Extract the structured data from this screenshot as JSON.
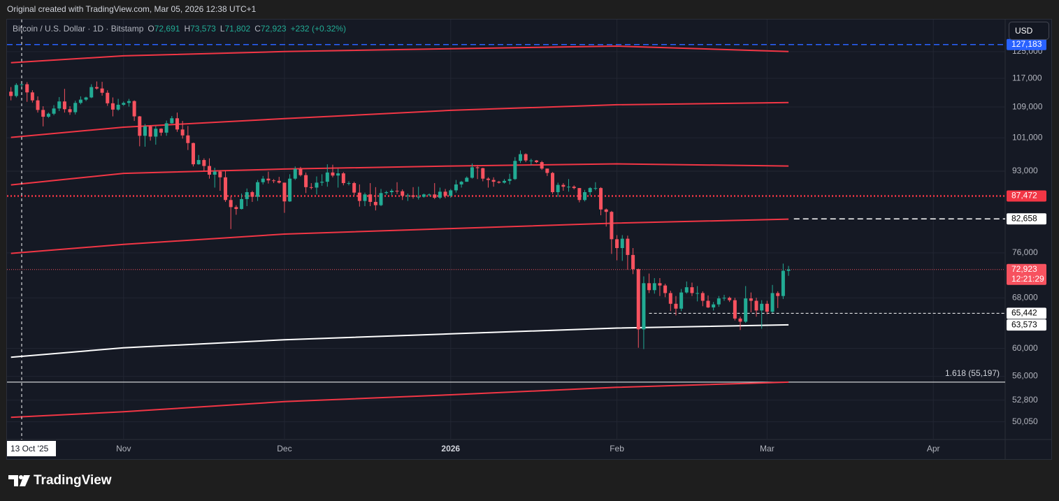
{
  "attribution": "Original created with TradingView.com, Mar 05, 2026 12:38 UTC+1",
  "currency_button": "USD",
  "brand": "TradingView",
  "chart_data": {
    "type": "candlestick",
    "legend": {
      "symbol": "Bitcoin / U.S. Dollar · 1D · Bitstamp",
      "open_label": "O",
      "open": "72,691",
      "high_label": "H",
      "high": "73,573",
      "low_label": "L",
      "low": "71,802",
      "close_label": "C",
      "close": "72,923",
      "change": "+232 (+0.32%)"
    },
    "log_scale": true,
    "grid": true,
    "up_color": "#22ab94",
    "down_color": "#f7525f",
    "ylim": [
      47900,
      135300
    ],
    "yticks": [
      {
        "value": 125000,
        "label": "125,000"
      },
      {
        "value": 117000,
        "label": "117,000"
      },
      {
        "value": 109000,
        "label": "109,000"
      },
      {
        "value": 101000,
        "label": "101,000"
      },
      {
        "value": 93000,
        "label": "93,000"
      },
      {
        "value": 76000,
        "label": "76,000"
      },
      {
        "value": 68000,
        "label": "68,000"
      },
      {
        "value": 60000,
        "label": "60,000"
      },
      {
        "value": 56000,
        "label": "56,000"
      },
      {
        "value": 52800,
        "label": "52,800"
      },
      {
        "value": 50050,
        "label": "50,050"
      }
    ],
    "xlim": [
      -0.74,
      185.4
    ],
    "xticks": [
      {
        "value": 21,
        "label": "Nov"
      },
      {
        "value": 51,
        "label": "Dec"
      },
      {
        "value": 82,
        "label": "2026"
      },
      {
        "value": 113,
        "label": "Feb"
      },
      {
        "value": 141,
        "label": "Mar"
      },
      {
        "value": 172,
        "label": "Apr"
      }
    ],
    "crosshair": {
      "x": 2,
      "label": "13 Oct '25"
    },
    "candles": [
      [
        113200,
        114500,
        110800,
        112000
      ],
      [
        112000,
        115600,
        111600,
        115100
      ],
      [
        115100,
        116000,
        113800,
        115300
      ],
      [
        115300,
        115900,
        110400,
        113000
      ],
      [
        113000,
        113600,
        110200,
        110800
      ],
      [
        110800,
        111900,
        107500,
        108200
      ],
      [
        108200,
        109200,
        103900,
        106400
      ],
      [
        106400,
        107500,
        106100,
        107200
      ],
      [
        107200,
        109500,
        106800,
        108600
      ],
      [
        108600,
        111700,
        107900,
        110500
      ],
      [
        110500,
        114000,
        107500,
        108400
      ],
      [
        108400,
        109200,
        106900,
        107600
      ],
      [
        107600,
        110700,
        107000,
        110100
      ],
      [
        110100,
        111900,
        109700,
        111000
      ],
      [
        111000,
        111800,
        110600,
        111600
      ],
      [
        111600,
        115300,
        111400,
        114500
      ],
      [
        114500,
        116100,
        113800,
        114100
      ],
      [
        114100,
        116000,
        112100,
        112900
      ],
      [
        112900,
        113600,
        109300,
        110000
      ],
      [
        110000,
        111600,
        106500,
        108300
      ],
      [
        108300,
        111200,
        108000,
        109600
      ],
      [
        109600,
        110500,
        109300,
        110100
      ],
      [
        110100,
        111200,
        109100,
        110600
      ],
      [
        110600,
        110800,
        105300,
        106500
      ],
      [
        106500,
        106600,
        98900,
        101500
      ],
      [
        101500,
        104500,
        98800,
        103900
      ],
      [
        103900,
        104200,
        100300,
        101300
      ],
      [
        101300,
        104000,
        99300,
        103300
      ],
      [
        103300,
        103400,
        101500,
        102300
      ],
      [
        102300,
        105400,
        101500,
        104700
      ],
      [
        104700,
        106600,
        104600,
        106000
      ],
      [
        106000,
        107500,
        102500,
        103100
      ],
      [
        103100,
        105300,
        100800,
        101600
      ],
      [
        101600,
        104000,
        98000,
        99700
      ],
      [
        99700,
        99800,
        94100,
        94600
      ],
      [
        94600,
        96800,
        94500,
        95600
      ],
      [
        95600,
        96000,
        93100,
        94200
      ],
      [
        94200,
        96000,
        91300,
        92200
      ],
      [
        92200,
        93800,
        89300,
        92900
      ],
      [
        92900,
        93200,
        88600,
        91600
      ],
      [
        91600,
        93100,
        86200,
        86600
      ],
      [
        86600,
        87400,
        80600,
        85100
      ],
      [
        85100,
        85500,
        83500,
        84700
      ],
      [
        84700,
        88000,
        84600,
        86800
      ],
      [
        86800,
        89100,
        85300,
        88300
      ],
      [
        88300,
        88600,
        86200,
        87300
      ],
      [
        87300,
        91000,
        86400,
        90500
      ],
      [
        90500,
        91900,
        90000,
        91300
      ],
      [
        91300,
        92900,
        90200,
        90900
      ],
      [
        90900,
        91200,
        90300,
        90800
      ],
      [
        90800,
        91700,
        90200,
        90400
      ],
      [
        90400,
        90400,
        83900,
        86300
      ],
      [
        86300,
        92300,
        86200,
        91300
      ],
      [
        91300,
        94100,
        91000,
        93500
      ],
      [
        93500,
        94000,
        91800,
        92100
      ],
      [
        92100,
        92700,
        88100,
        89400
      ],
      [
        89400,
        90300,
        88900,
        89300
      ],
      [
        89300,
        91800,
        87800,
        90400
      ],
      [
        90400,
        92300,
        89700,
        90600
      ],
      [
        90600,
        94600,
        89500,
        92700
      ],
      [
        92700,
        94500,
        91600,
        92000
      ],
      [
        92000,
        93600,
        89300,
        92500
      ],
      [
        92500,
        92800,
        89800,
        90300
      ],
      [
        90300,
        90700,
        89800,
        90300
      ],
      [
        90300,
        90600,
        87600,
        88200
      ],
      [
        88200,
        90000,
        85200,
        86400
      ],
      [
        86400,
        88200,
        85300,
        87800
      ],
      [
        87800,
        90300,
        85300,
        86200
      ],
      [
        86200,
        89400,
        84400,
        85500
      ],
      [
        85500,
        89000,
        85300,
        88100
      ],
      [
        88100,
        88600,
        87700,
        88300
      ],
      [
        88300,
        89000,
        87600,
        88600
      ],
      [
        88600,
        90500,
        87900,
        88500
      ],
      [
        88500,
        88900,
        86600,
        87500
      ],
      [
        87500,
        88000,
        86400,
        87600
      ],
      [
        87600,
        89400,
        86900,
        87300
      ],
      [
        87300,
        89500,
        86700,
        87300
      ],
      [
        87300,
        88000,
        87100,
        87800
      ],
      [
        87800,
        88000,
        87400,
        87800
      ],
      [
        87800,
        90300,
        86800,
        87100
      ],
      [
        87100,
        89300,
        86800,
        88400
      ],
      [
        88400,
        89000,
        87000,
        87500
      ],
      [
        87500,
        89000,
        87100,
        88700
      ],
      [
        88700,
        91000,
        88200,
        90000
      ],
      [
        90000,
        90800,
        89300,
        90600
      ],
      [
        90600,
        91800,
        90600,
        91500
      ],
      [
        91500,
        94800,
        91300,
        93900
      ],
      [
        93900,
        94400,
        91200,
        93700
      ],
      [
        93700,
        93800,
        90700,
        91300
      ],
      [
        91300,
        91600,
        89300,
        91000
      ],
      [
        91000,
        91600,
        89500,
        90600
      ],
      [
        90600,
        90800,
        90200,
        90400
      ],
      [
        90400,
        91200,
        90200,
        90800
      ],
      [
        90800,
        92400,
        90000,
        91200
      ],
      [
        91200,
        96300,
        91000,
        95400
      ],
      [
        95400,
        97900,
        94900,
        97000
      ],
      [
        97000,
        97200,
        95100,
        95500
      ],
      [
        95500,
        95900,
        94400,
        95500
      ],
      [
        95500,
        95600,
        94900,
        95100
      ],
      [
        95100,
        95400,
        93300,
        93600
      ],
      [
        93600,
        93600,
        91900,
        92600
      ],
      [
        92600,
        92800,
        87900,
        88300
      ],
      [
        88300,
        90400,
        87300,
        89900
      ],
      [
        89900,
        90300,
        88600,
        89500
      ],
      [
        89500,
        91200,
        88400,
        89500
      ],
      [
        89500,
        89800,
        88900,
        89200
      ],
      [
        89200,
        89200,
        86100,
        86600
      ],
      [
        86600,
        88800,
        86300,
        88300
      ],
      [
        88300,
        89400,
        87600,
        89200
      ],
      [
        89200,
        90500,
        88700,
        89200
      ],
      [
        89200,
        89400,
        83400,
        84600
      ],
      [
        84600,
        84800,
        81100,
        84100
      ],
      [
        84100,
        84300,
        75800,
        78600
      ],
      [
        78600,
        79400,
        74600,
        76900
      ],
      [
        76900,
        79400,
        74500,
        78700
      ],
      [
        78700,
        79300,
        72900,
        75600
      ],
      [
        75600,
        76900,
        72100,
        73000
      ],
      [
        73000,
        73100,
        60100,
        62900
      ],
      [
        62900,
        71700,
        59900,
        70500
      ],
      [
        70500,
        72200,
        68800,
        69300
      ],
      [
        69300,
        71400,
        68700,
        70500
      ],
      [
        70500,
        71400,
        68300,
        70100
      ],
      [
        70100,
        70400,
        68100,
        68800
      ],
      [
        68800,
        69200,
        65800,
        67000
      ],
      [
        67000,
        68300,
        65100,
        66200
      ],
      [
        66200,
        69500,
        65800,
        68900
      ],
      [
        68900,
        70800,
        68700,
        69800
      ],
      [
        69800,
        70600,
        68300,
        68800
      ],
      [
        68800,
        70000,
        67400,
        68800
      ],
      [
        68800,
        69100,
        66600,
        67500
      ],
      [
        67500,
        68400,
        66300,
        66400
      ],
      [
        66400,
        67300,
        65900,
        66900
      ],
      [
        66900,
        68300,
        66500,
        67900
      ],
      [
        67900,
        68500,
        67500,
        68000
      ],
      [
        68000,
        68200,
        67300,
        67600
      ],
      [
        67600,
        68000,
        64300,
        64600
      ],
      [
        64600,
        64900,
        62800,
        64100
      ],
      [
        64100,
        70000,
        63900,
        67900
      ],
      [
        67900,
        68900,
        65600,
        67500
      ],
      [
        67500,
        68000,
        64900,
        65900
      ],
      [
        65900,
        67600,
        63000,
        67000
      ],
      [
        67000,
        67500,
        65300,
        65700
      ],
      [
        65700,
        70200,
        65500,
        68800
      ],
      [
        68800,
        69100,
        66300,
        68300
      ],
      [
        68300,
        74000,
        67800,
        72700
      ],
      [
        72691,
        73573,
        71802,
        72923
      ]
    ],
    "bands": [
      {
        "color": "#f23645",
        "x": [
          0,
          21,
          51,
          82,
          113,
          145
        ],
        "values": [
          121600,
          123700,
          125000,
          125900,
          126700,
          125000
        ]
      },
      {
        "color": "#f23645",
        "x": [
          0,
          21,
          51,
          82,
          113,
          145
        ],
        "values": [
          101100,
          103700,
          105900,
          108100,
          109600,
          110200
        ]
      },
      {
        "color": "#f23645",
        "x": [
          0,
          21,
          51,
          82,
          113,
          145
        ],
        "values": [
          89900,
          92500,
          93500,
          94200,
          94700,
          94200
        ]
      },
      {
        "color": "#f23645",
        "x": [
          0,
          21,
          51,
          82,
          113,
          145
        ],
        "values": [
          75900,
          77600,
          79600,
          80700,
          81800,
          82600
        ]
      },
      {
        "color": "#ffffff",
        "x": [
          0,
          21,
          51,
          82,
          113,
          145
        ],
        "values": [
          58700,
          60100,
          61300,
          62200,
          63100,
          63600
        ]
      },
      {
        "color": "#f23645",
        "x": [
          0,
          21,
          51,
          82,
          113,
          145
        ],
        "values": [
          50600,
          51300,
          52600,
          53500,
          54500,
          55200
        ]
      }
    ],
    "levels": [
      {
        "value": 127183,
        "label": "127,183",
        "color": "#2962ff",
        "style": "dashed",
        "label_bg": "#2962ff",
        "label_color": "#ffffff"
      },
      {
        "value": 87472,
        "label": "87,472",
        "color": "#f23645",
        "style": "dotted",
        "label_bg": "#f23645",
        "label_color": "#ffffff"
      },
      {
        "value": 82658,
        "label": "82,658",
        "color": "#ffffff",
        "style": "dashed",
        "from": 146,
        "label_bg": "#ffffff",
        "label_color": "#000000"
      },
      {
        "value": 72923,
        "label": "72,923",
        "countdown": "12:21:29",
        "color": "#f7525f",
        "style": "dotted-thin",
        "label_bg": "#f7525f",
        "label_color": "#ffffff"
      },
      {
        "value": 65442,
        "label": "65,442",
        "color": "#ffffff",
        "style": "dashed-thin",
        "from": 119,
        "label_bg": "#ffffff",
        "label_color": "#000000"
      },
      {
        "value": 63573,
        "label": "63,573",
        "color": "#ffffff",
        "style": "none",
        "label_bg": "#ffffff",
        "label_color": "#000000"
      }
    ],
    "fib": {
      "value": 55197,
      "label": "1.618 (55,197)",
      "color": "#ffffff"
    }
  }
}
